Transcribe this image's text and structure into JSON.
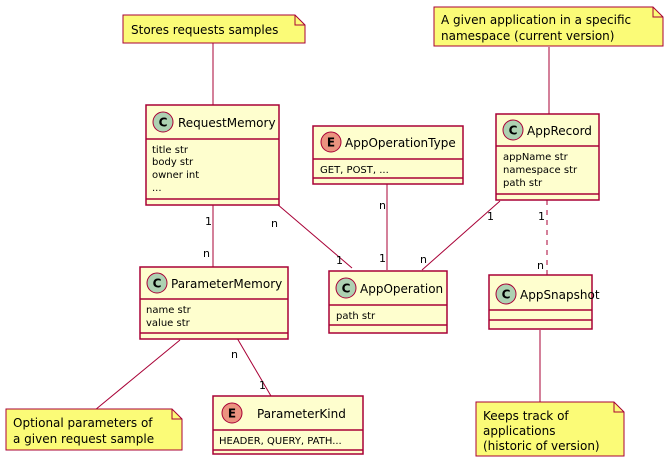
{
  "notes": {
    "request_samples": {
      "lines": [
        "Stores requests samples"
      ]
    },
    "app_record": {
      "lines": [
        "A given application in a specific",
        "namespace  (current version)"
      ]
    },
    "optional_params": {
      "lines": [
        "Optional parameters of",
        "a given request sample"
      ]
    },
    "snapshot": {
      "lines": [
        "Keeps track of",
        "applications",
        "(historic of version)"
      ]
    }
  },
  "classes": {
    "request_memory": {
      "stereotype": "C",
      "name": "RequestMemory",
      "attributes": [
        "title str",
        "body str",
        "owner int",
        "..."
      ]
    },
    "app_operation_type": {
      "stereotype": "E",
      "name": "AppOperationType",
      "attributes": [
        "GET, POST, ..."
      ]
    },
    "app_record": {
      "stereotype": "C",
      "name": "AppRecord",
      "attributes": [
        "appName str",
        "namespace str",
        "path str"
      ]
    },
    "parameter_memory": {
      "stereotype": "C",
      "name": "ParameterMemory",
      "attributes": [
        "name str",
        "value str"
      ]
    },
    "app_operation": {
      "stereotype": "C",
      "name": "AppOperation",
      "attributes": [
        "path str"
      ]
    },
    "app_snapshot": {
      "stereotype": "C",
      "name": "AppSnapshot",
      "attributes": []
    },
    "parameter_kind": {
      "stereotype": "E",
      "name": "ParameterKind",
      "attributes": [
        "HEADER, QUERY, PATH..."
      ]
    }
  },
  "relations": {
    "request_to_parameter": {
      "from_mult": "1",
      "to_mult": "n"
    },
    "request_to_operation": {
      "from_mult": "n",
      "to_mult": "1"
    },
    "type_to_operation": {
      "from_mult": "n",
      "to_mult": "1"
    },
    "record_to_operation": {
      "from_mult": "1",
      "to_mult": "n"
    },
    "record_to_snapshot": {
      "from_mult": "1",
      "to_mult": "n"
    },
    "parameter_to_kind": {
      "from_mult": "n",
      "to_mult": "1"
    }
  },
  "colors": {
    "class_fill": "#FEFECE",
    "class_border": "#A80036",
    "note_fill": "#FBFB77",
    "note_border": "#A80036",
    "class_circle": "#ADD1B2",
    "enum_circle": "#EB937F",
    "line": "#A80036"
  }
}
